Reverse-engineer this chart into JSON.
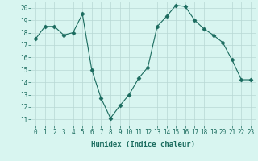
{
  "x": [
    0,
    1,
    2,
    3,
    4,
    5,
    6,
    7,
    8,
    9,
    10,
    11,
    12,
    13,
    14,
    15,
    16,
    17,
    18,
    19,
    20,
    21,
    22,
    23
  ],
  "y": [
    17.5,
    18.5,
    18.5,
    17.8,
    18.0,
    19.5,
    15.0,
    12.7,
    11.1,
    12.1,
    13.0,
    14.3,
    15.2,
    18.5,
    19.3,
    20.2,
    20.1,
    19.0,
    18.3,
    17.8,
    17.2,
    15.8,
    14.2,
    14.2
  ],
  "line_color": "#1a6b5e",
  "marker": "D",
  "marker_size": 2.5,
  "bg_color": "#d8f5f0",
  "grid_color": "#b8d8d4",
  "xlabel": "Humidex (Indice chaleur)",
  "ylim": [
    10.5,
    20.5
  ],
  "xlim": [
    -0.5,
    23.5
  ],
  "yticks": [
    11,
    12,
    13,
    14,
    15,
    16,
    17,
    18,
    19,
    20
  ],
  "xticks": [
    0,
    1,
    2,
    3,
    4,
    5,
    6,
    7,
    8,
    9,
    10,
    11,
    12,
    13,
    14,
    15,
    16,
    17,
    18,
    19,
    20,
    21,
    22,
    23
  ],
  "title_color": "#1a6b5e",
  "axis_color": "#1a6b5e",
  "font_size_label": 6.5,
  "font_size_tick": 5.5
}
